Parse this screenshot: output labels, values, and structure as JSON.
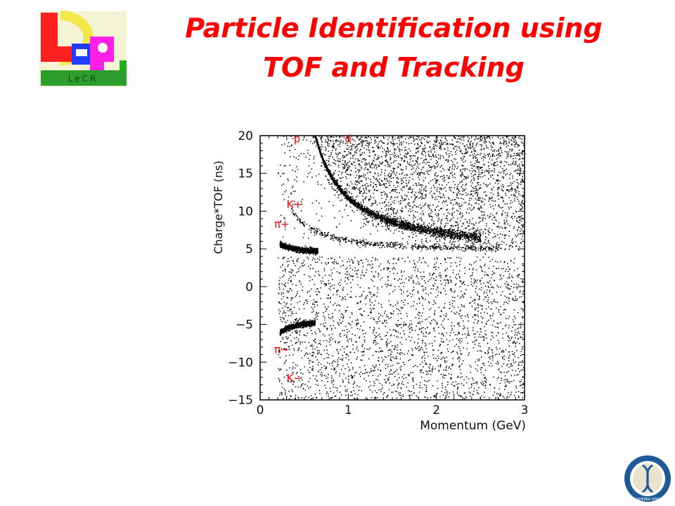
{
  "slide": {
    "title_line1": "Particle Identification using",
    "title_line2": "TOF and Tracking"
  },
  "logo": {
    "icon": "lcr-logo",
    "text": "LeCR"
  },
  "seal": {
    "icon": "academia-sinica-seal",
    "text": "ACADEMIA SINICA"
  },
  "colors": {
    "title": "#ff0000",
    "annotation": "#ff0000",
    "points": "#000000"
  },
  "chart_data": {
    "type": "scatter",
    "title": "",
    "xlabel": "Momentum (GeV)",
    "ylabel": "Charge*TOF (ns)",
    "xlim": [
      0,
      3
    ],
    "ylim": [
      -15,
      20
    ],
    "xticks": [
      0,
      1,
      2,
      3
    ],
    "yticks": [
      -15,
      -10,
      -5,
      0,
      5,
      10,
      15,
      20
    ],
    "grid": false,
    "annotations": [
      {
        "text": "p",
        "x": 0.38,
        "y": 19.1
      },
      {
        "text": "d",
        "x": 0.96,
        "y": 19.1
      },
      {
        "text": "K+",
        "x": 0.3,
        "y": 10.4
      },
      {
        "text": "π+",
        "x": 0.16,
        "y": 7.8
      },
      {
        "text": "π−",
        "x": 0.16,
        "y": -8.8
      },
      {
        "text": "K−",
        "x": 0.3,
        "y": -12.6
      }
    ],
    "bands": [
      {
        "name": "proton",
        "charge": "+",
        "p_range": [
          0.45,
          2.5
        ],
        "note": "dense band from ~20 ns at 0.45 GeV down to ~5 ns at 2.5 GeV"
      },
      {
        "name": "pion+",
        "charge": "+",
        "p_range": [
          0.2,
          0.65
        ],
        "note": "dense cluster near +5 ns"
      },
      {
        "name": "pion-",
        "charge": "-",
        "p_range": [
          0.2,
          0.6
        ],
        "note": "dense cluster near -5 ns"
      }
    ]
  }
}
